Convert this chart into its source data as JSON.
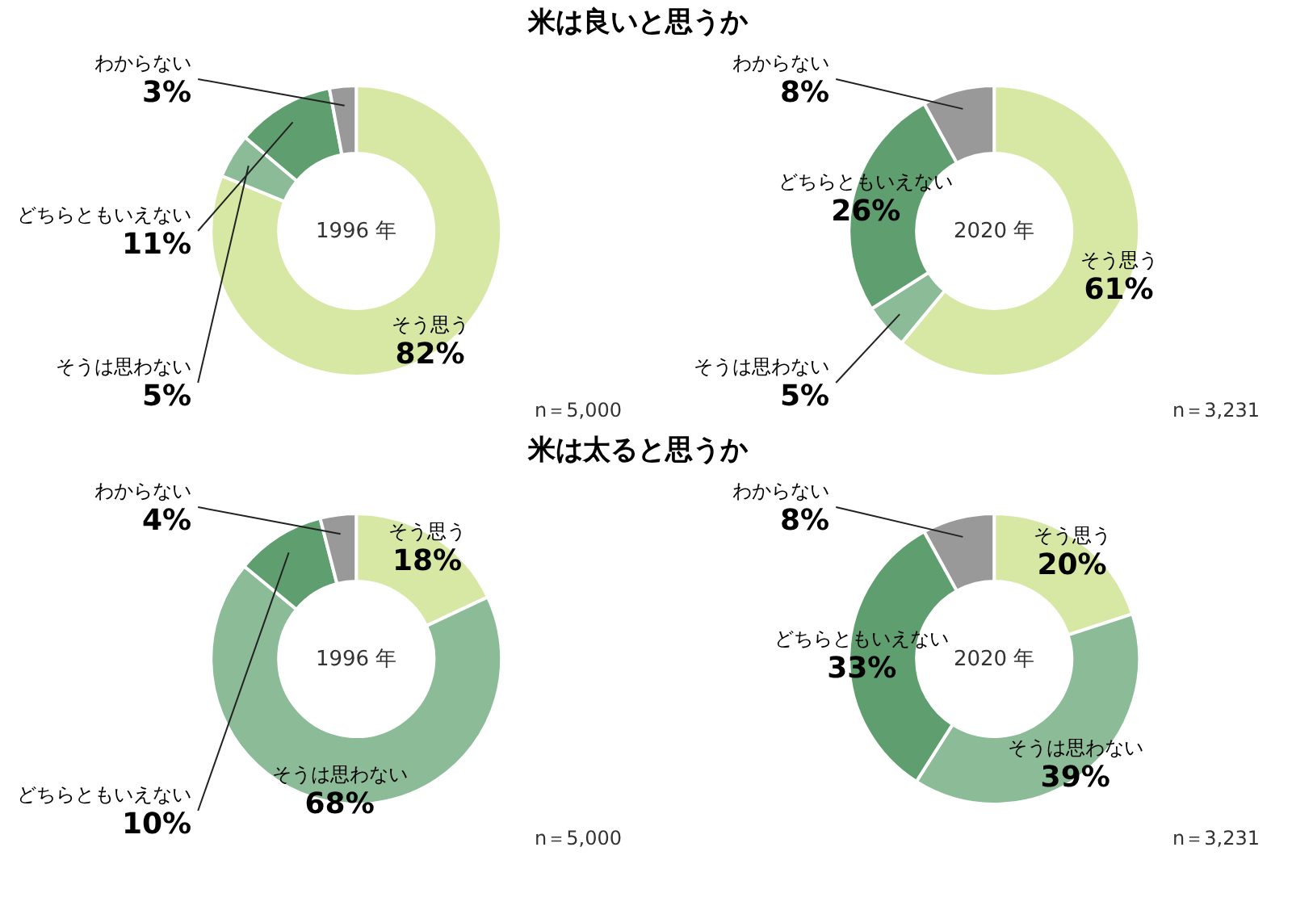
{
  "chart_data": [
    {
      "type": "donut",
      "title": "米は良いと思うか",
      "categories": [
        "そう思う",
        "そうは思わない",
        "どちらともいえない",
        "わからない"
      ],
      "values": [
        82,
        5,
        11,
        3
      ],
      "colors": [
        "#d6e8a4",
        "#8cbb98",
        "#5f9e6e",
        "#999999"
      ],
      "value_labels": [
        "82%",
        "5%",
        "11%",
        "3%"
      ],
      "annotations": [
        "1996 年",
        "n＝5,000"
      ]
    },
    {
      "type": "donut",
      "categories": [
        "そう思う",
        "そうは思わない",
        "どちらともいえない",
        "わからない"
      ],
      "values": [
        61,
        5,
        26,
        8
      ],
      "colors": [
        "#d6e8a4",
        "#8cbb98",
        "#5f9e6e",
        "#999999"
      ],
      "value_labels": [
        "61%",
        "5%",
        "26%",
        "8%"
      ],
      "annotations": [
        "2020 年",
        "n＝3,231"
      ]
    },
    {
      "type": "donut",
      "title": "米は太ると思うか",
      "categories": [
        "そう思う",
        "そうは思わない",
        "どちらともいえない",
        "わからない"
      ],
      "values": [
        18,
        68,
        10,
        4
      ],
      "colors": [
        "#d6e8a4",
        "#8cbb98",
        "#5f9e6e",
        "#999999"
      ],
      "value_labels": [
        "18%",
        "68%",
        "10%",
        "4%"
      ],
      "annotations": [
        "1996 年",
        "n＝5,000"
      ]
    },
    {
      "type": "donut",
      "categories": [
        "そう思う",
        "そうは思わない",
        "どちらともいえない",
        "わからない"
      ],
      "values": [
        20,
        39,
        33,
        8
      ],
      "colors": [
        "#d6e8a4",
        "#8cbb98",
        "#5f9e6e",
        "#999999"
      ],
      "value_labels": [
        "20%",
        "39%",
        "33%",
        "8%"
      ],
      "annotations": [
        "2020 年",
        "n＝3,231"
      ]
    }
  ]
}
